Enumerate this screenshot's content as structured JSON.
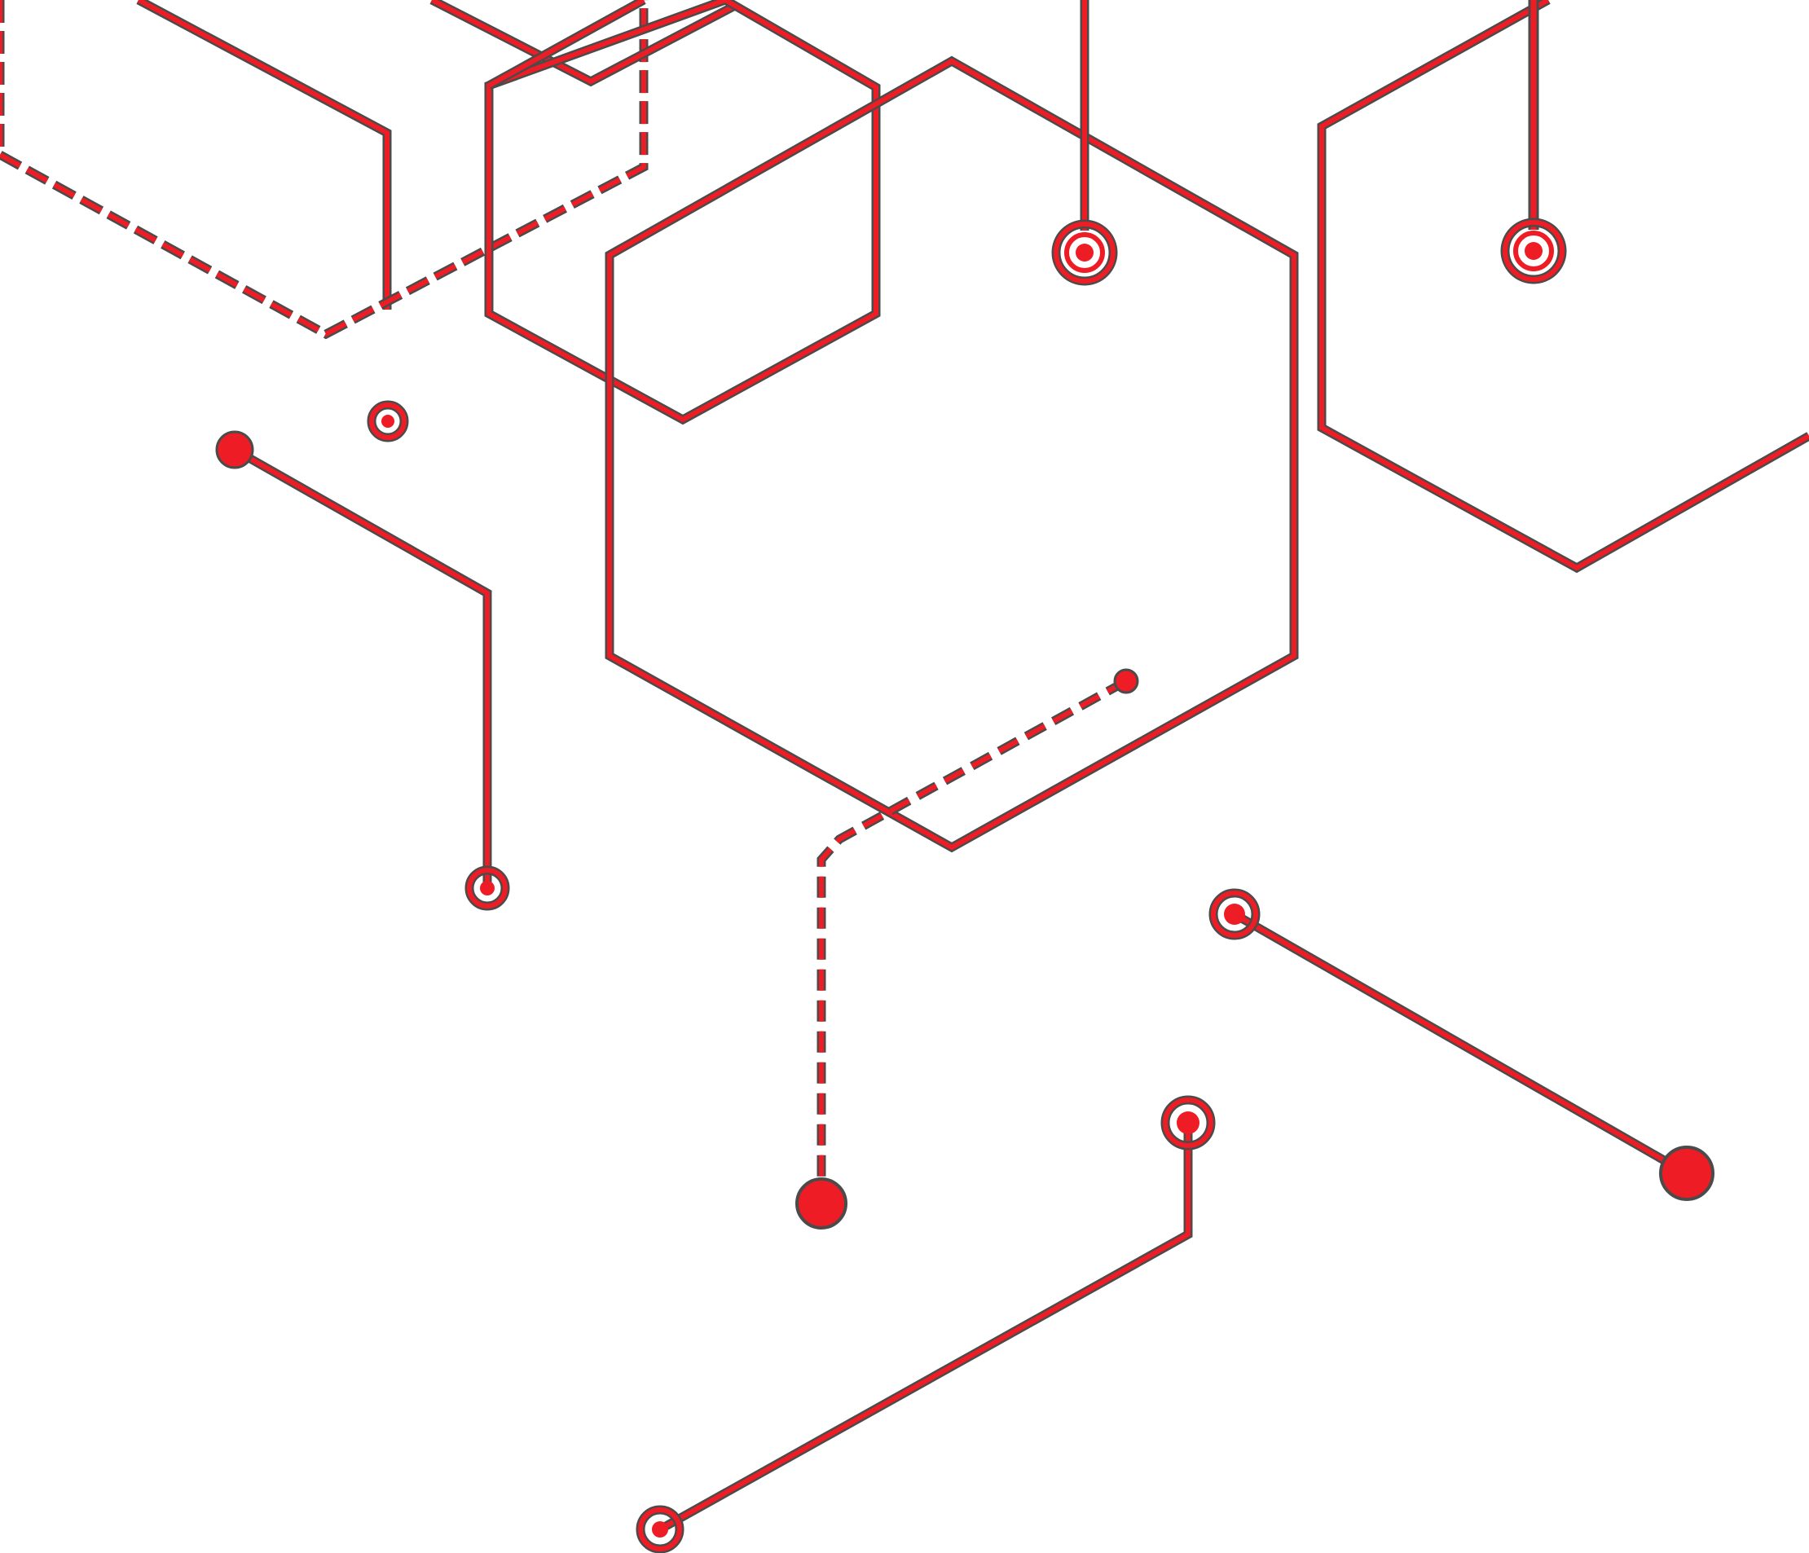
{
  "colors": {
    "line": "#ee1c25",
    "outline": "#4b4b4b",
    "background": "#ffffff"
  },
  "artwork": {
    "description_name": "hexagon-circuit-pattern",
    "hexagons": [
      {
        "name": "hexagon-top-left-dashed"
      },
      {
        "name": "hexagon-small-overlap"
      },
      {
        "name": "hexagon-small-top"
      },
      {
        "name": "hexagon-large-center"
      },
      {
        "name": "hexagon-right-partial"
      }
    ],
    "traces": [
      {
        "name": "trace-top-left-vertical",
        "dashed": false,
        "terminal": "ring-node"
      },
      {
        "name": "trace-left-bent",
        "dashed": false,
        "terminal": "ring-node"
      },
      {
        "name": "trace-top-center-vertical",
        "dashed": false,
        "terminal": "double-ring-node"
      },
      {
        "name": "trace-top-right-vertical",
        "dashed": false,
        "terminal": "double-ring-node"
      },
      {
        "name": "trace-center-dashed",
        "dashed": true,
        "terminal": "solid-node"
      },
      {
        "name": "trace-right-diagonal",
        "dashed": false,
        "terminal": "solid-node"
      },
      {
        "name": "trace-bottom-bent",
        "dashed": false,
        "terminal": "ring-node"
      }
    ]
  }
}
